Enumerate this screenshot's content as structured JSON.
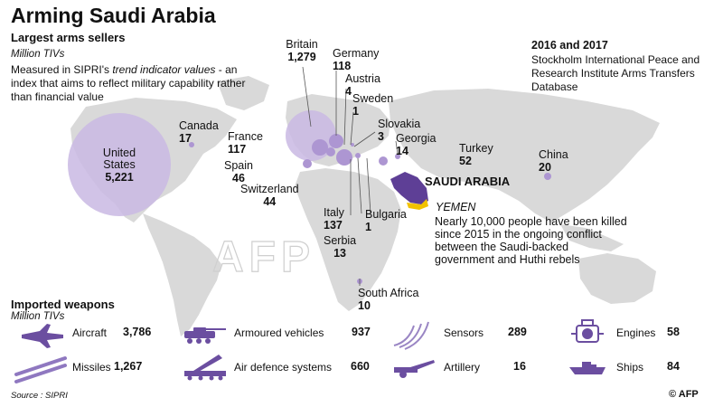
{
  "header": {
    "title": "Arming Saudi Arabia",
    "subtitle": "Largest arms sellers",
    "units": "Million TIVs",
    "description_pre": "Measured in SIPRI's ",
    "description_em": "trend indicator values",
    "description_post": " - an index that aims to reflect military capability rather than financial value",
    "period": "2016 and 2017",
    "source_db": "Stockholm International Peace and Research Institute Arms Transfers Database"
  },
  "sellers": [
    {
      "country": "United States",
      "value": "5,221"
    },
    {
      "country": "Britain",
      "value": "1,279"
    },
    {
      "country": "Germany",
      "value": "118"
    },
    {
      "country": "Austria",
      "value": "4"
    },
    {
      "country": "Sweden",
      "value": "1"
    },
    {
      "country": "Slovakia",
      "value": "3"
    },
    {
      "country": "Georgia",
      "value": "14"
    },
    {
      "country": "Turkey",
      "value": "52"
    },
    {
      "country": "China",
      "value": "20"
    },
    {
      "country": "Canada",
      "value": "17"
    },
    {
      "country": "France",
      "value": "117"
    },
    {
      "country": "Spain",
      "value": "46"
    },
    {
      "country": "Switzerland",
      "value": "44"
    },
    {
      "country": "Italy",
      "value": "137"
    },
    {
      "country": "Bulgaria",
      "value": "1"
    },
    {
      "country": "Serbia",
      "value": "13"
    },
    {
      "country": "South Africa",
      "value": "10"
    }
  ],
  "map": {
    "highlight_label": "SAUDI ARABIA",
    "yemen_label": "YEMEN",
    "note": "Nearly 10,000 people have been killed since 2015 in the ongoing conflict between the Saudi-backed government and Huthi rebels",
    "watermark": "AFP"
  },
  "imports": {
    "title": "Imported weapons",
    "units": "Million TIVs",
    "items": [
      {
        "label": "Aircraft",
        "value": "3,786",
        "icon": "aircraft-icon"
      },
      {
        "label": "Armoured vehicles",
        "value": "937",
        "icon": "armoured-vehicle-icon"
      },
      {
        "label": "Sensors",
        "value": "289",
        "icon": "sensor-icon"
      },
      {
        "label": "Engines",
        "value": "58",
        "icon": "engine-icon"
      },
      {
        "label": "Missiles",
        "value": "1,267",
        "icon": "missile-icon"
      },
      {
        "label": "Air defence systems",
        "value": "660",
        "icon": "air-defence-icon"
      },
      {
        "label": "Artillery",
        "value": "16",
        "icon": "artillery-icon"
      },
      {
        "label": "Ships",
        "value": "84",
        "icon": "ship-icon"
      }
    ]
  },
  "footer": {
    "source": "Source : SIPRI",
    "brand": "© AFP"
  },
  "colors": {
    "bubble": "#c7b6e0",
    "bubble_dark": "#a991cf",
    "saudi": "#5e3f96",
    "yemen": "#f4c300",
    "land": "#d8d8d8",
    "accent": "#6b4ea0"
  }
}
